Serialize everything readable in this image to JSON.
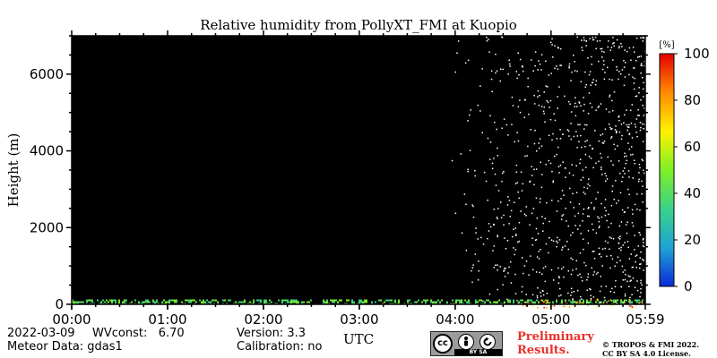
{
  "chart_data": {
    "type": "heatmap",
    "title": "Relative humidity from PollyXT_FMI at Kuopio",
    "xlabel": "UTC",
    "ylabel": "Height (m)",
    "x_range_hours": [
      0,
      5.983
    ],
    "x_ticks": [
      {
        "hour": 0,
        "label": "00:00"
      },
      {
        "hour": 1,
        "label": "01:00"
      },
      {
        "hour": 2,
        "label": "02:00"
      },
      {
        "hour": 3,
        "label": "03:00"
      },
      {
        "hour": 4,
        "label": "04:00"
      },
      {
        "hour": 5,
        "label": "05:00"
      },
      {
        "hour": 5.983,
        "label": "05:59"
      }
    ],
    "ylim": [
      0,
      7000
    ],
    "y_ticks": [
      0,
      2000,
      4000,
      6000
    ],
    "colorbar": {
      "unit_label": "[%]",
      "range": [
        0,
        100
      ],
      "ticks": [
        0,
        20,
        40,
        60,
        80,
        100
      ],
      "colors": [
        "#0a2ad8",
        "#1fa3d4",
        "#3bd28a",
        "#7ef026",
        "#fff200",
        "#ff8a00",
        "#e50000"
      ]
    },
    "background_color": "#000000",
    "features": [
      {
        "description_key": "near_surface_band",
        "hours": [
          0,
          5.983
        ],
        "height_m": [
          0,
          150
        ],
        "rh_percent": [
          25,
          55
        ]
      },
      {
        "description_key": "gap",
        "hours": [
          2.5,
          2.6
        ],
        "height_m": [
          0,
          150
        ]
      },
      {
        "description_key": "scattered_noise",
        "hours": [
          3.95,
          5.983
        ],
        "height_m": [
          0,
          7000
        ],
        "color": "#ffffff"
      }
    ]
  },
  "footer": {
    "date": "2022-03-09",
    "wvconst": "WVconst:   6.70",
    "meteor": "Meteor Data: gdas1",
    "version": "Version: 3.3",
    "calibration": "Calibration: no",
    "prelim_line1": "Preliminary",
    "prelim_line2": "Results.",
    "copyright_line1": "© TROPOS & FMI 2022.",
    "copyright_line2": "CC BY SA 4.0 License.",
    "cc_logo_text": "cc",
    "cc_strip_text": "BY    SA"
  }
}
